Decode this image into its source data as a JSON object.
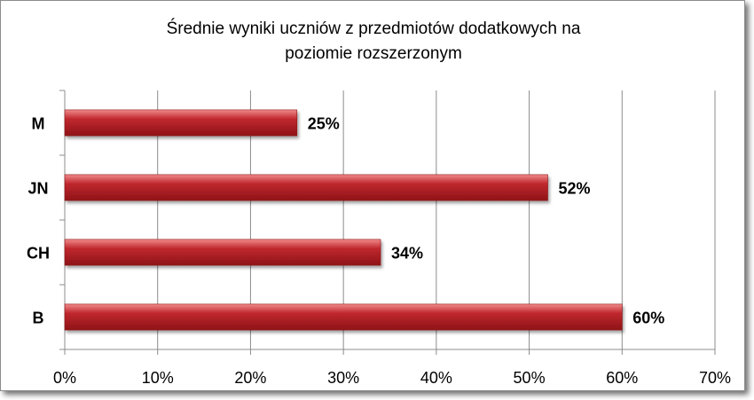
{
  "chart_data": {
    "type": "bar",
    "orientation": "horizontal",
    "title": [
      "Średnie wyniki uczniów z przedmiotów dodatkowych na",
      "poziomie rozszerzonym"
    ],
    "categories": [
      "M",
      "JN",
      "CH",
      "B"
    ],
    "values": [
      25,
      52,
      34,
      60
    ],
    "data_labels": [
      "25%",
      "52%",
      "34%",
      "60%"
    ],
    "xlim": [
      0,
      70
    ],
    "x_ticks": [
      0,
      10,
      20,
      30,
      40,
      50,
      60,
      70
    ],
    "x_tick_labels": [
      "0%",
      "10%",
      "20%",
      "30%",
      "40%",
      "50%",
      "60%",
      "70%"
    ],
    "grid": true,
    "legend": "none",
    "colors": {
      "bar": "#c0282e",
      "bar_light": "#f08a8a",
      "bar_dark": "#8e1317",
      "grid": "#8c8c8c"
    }
  }
}
